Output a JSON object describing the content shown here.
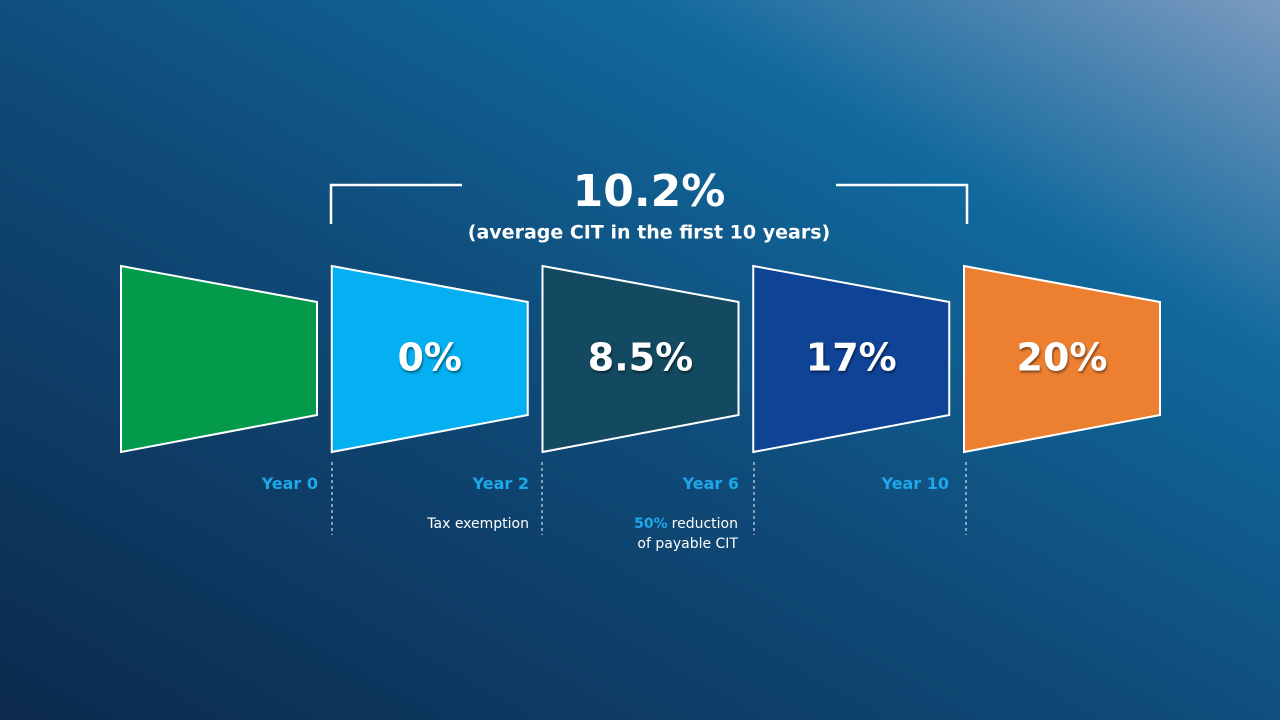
{
  "summary": {
    "value": "10.2%",
    "caption": "(average CIT in the first 10 years)"
  },
  "stages": [
    {
      "color": "#039b4b"
    },
    {
      "label": "0%",
      "color": "#04b0f1"
    },
    {
      "label": "8.5%",
      "color": "#134a62"
    },
    {
      "label": "17%",
      "color": "#0e4396"
    },
    {
      "label": "20%",
      "color": "#ed7f31"
    }
  ],
  "milestones": [
    {
      "label": "Year 0"
    },
    {
      "label": "Year 2",
      "note": "Tax exemption"
    },
    {
      "label": "Year 6",
      "note_highlight": "50%",
      "note": "reduction",
      "note_line2": "of payable CIT"
    },
    {
      "label": "Year 10"
    }
  ]
}
